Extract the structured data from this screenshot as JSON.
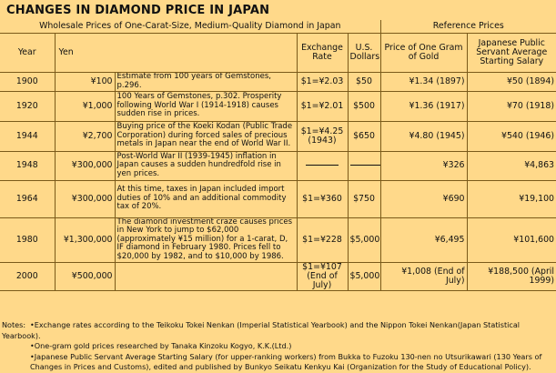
{
  "title": "CHANGES IN DIAMOND PRICE IN JAPAN",
  "groups": {
    "wholesale": "Wholesale Prices of One-Carat-Size, Medium-Quality Diamond in Japan",
    "reference": "Reference Prices"
  },
  "columns": {
    "year": "Year",
    "yen": "Yen",
    "exchange": "Exchange Rate",
    "usd": "U.S. Dollars",
    "gold": "Price of One Gram of Gold",
    "salary": "Japanese Public Servant Average Starting Salary"
  },
  "rows": [
    {
      "year": "1900",
      "yen": "¥100",
      "note": "Estimate from 100 years of Gemstones, p.296.",
      "exchange": "$1=¥2.03",
      "usd": "$50",
      "gold": "¥1.34 (1897)",
      "salary": "¥50 (1894)"
    },
    {
      "year": "1920",
      "yen": "¥1,000",
      "note": "100 Years of Gemstones, p.302. Prosperity following World War I (1914-1918) causes sudden rise in prices.",
      "exchange": "$1=¥2.01",
      "usd": "$500",
      "gold": "¥1.36 (1917)",
      "salary": "¥70 (1918)"
    },
    {
      "year": "1944",
      "yen": "¥2,700",
      "note": "Buying price of the Koeki Kodan (Public Trade Corporation) during forced sales of precious metals in Japan near the end of World War II.",
      "exchange": "$1=¥4.25 (1943)",
      "usd": "$650",
      "gold": "¥4.80 (1945)",
      "salary": "¥540 (1946)"
    },
    {
      "year": "1948",
      "yen": "¥300,000",
      "note": "Post-World War II (1939-1945) inflation in Japan causes a sudden hundredfold rise in yen prices.",
      "exchange": "",
      "usd": "",
      "gold": "¥326",
      "salary": "¥4,863"
    },
    {
      "year": "1964",
      "yen": "¥300,000",
      "note": "At this time, taxes in Japan included import duties of 10% and an additional commodity tax of 20%.",
      "exchange": "$1=¥360",
      "usd": "$750",
      "gold": "¥690",
      "salary": "¥19,100"
    },
    {
      "year": "1980",
      "yen": "¥1,300,000",
      "note": "The diamond investment craze causes prices in New York to jump to $62,000 (approximately ¥15 million) for a 1-carat, D, IF diamond in February 1980. Prices fell to $20,000 by 1982, and to $10,000 by 1986.",
      "exchange": "$1=¥228",
      "usd": "$5,000",
      "gold": "¥6,495",
      "salary": "¥101,600"
    },
    {
      "year": "2000",
      "yen": "¥500,000",
      "note": "",
      "exchange": "$1=¥107 (End of July)",
      "usd": "$5,000",
      "gold": "¥1,008 (End of July)",
      "salary": "¥188,500 (April 1999)"
    }
  ],
  "notes": {
    "label": "Notes:",
    "n1": "•Exchange rates according to the Teikoku Tokei Nenkan (Imperial Statistical Yearbook) and the Nippon Tokei Nenkan(Japan Statistical Yearbook).",
    "n2": "•One-gram gold prices researched by Tanaka Kinzoku Kogyo, K.K.(Ltd.)",
    "n3a": "•Japanese Public Servant Average Starting Salary (for upper-ranking workers) from Bukka to Fuzoku 130-nen no Utsurikawari (130 Years of",
    "n3b": "Changes in Prices and Customs), edited and published by Bunkyo Seikatu Kenkyu Kai (Organization for the Study of Educational Policy)."
  }
}
